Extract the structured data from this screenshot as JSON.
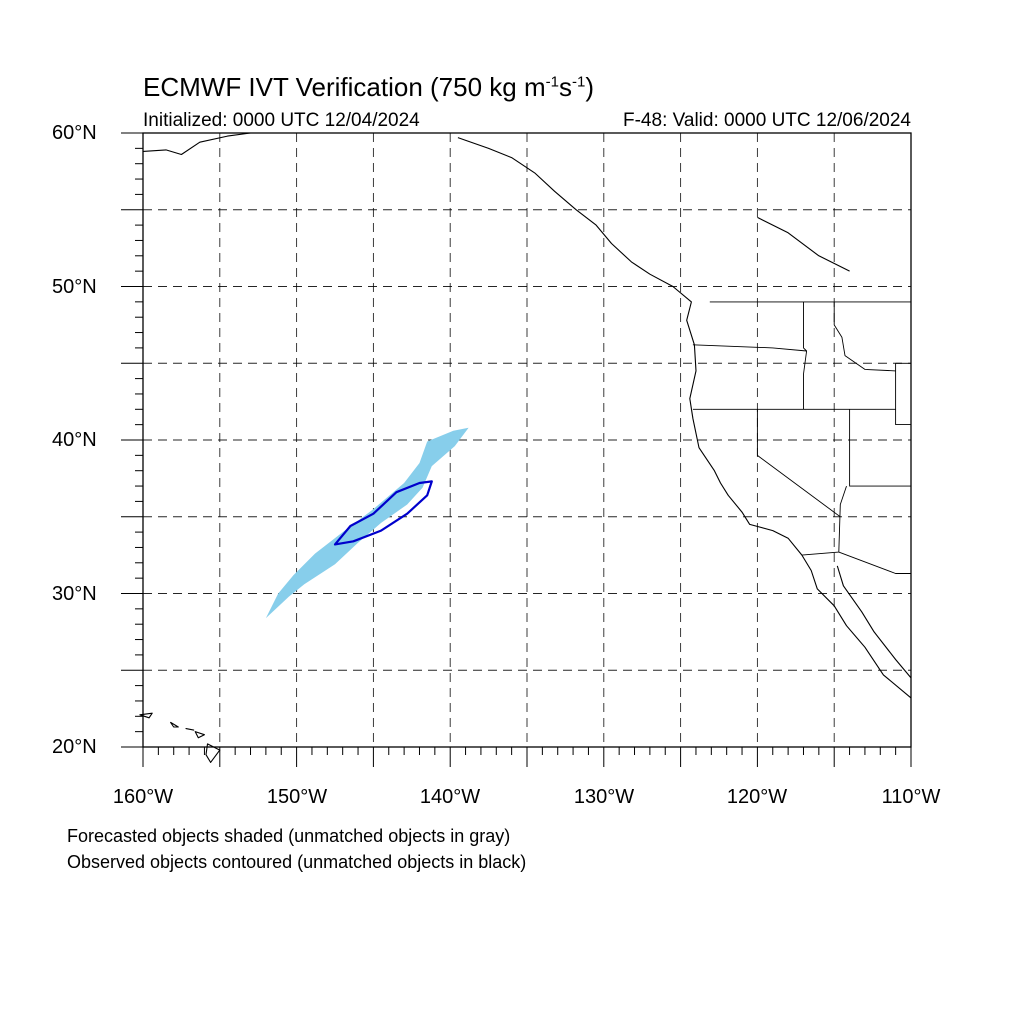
{
  "title": {
    "main": "ECMWF IVT Verification (750 kg m",
    "exp1": "-1",
    "mid": "s",
    "exp2": "-1",
    "close": ")"
  },
  "initialized": "Initialized: 0000 UTC 12/04/2024",
  "valid": "F-48: Valid: 0000 UTC 12/06/2024",
  "lat_labels": [
    "60°N",
    "50°N",
    "40°N",
    "30°N",
    "20°N"
  ],
  "lon_labels": [
    "160°W",
    "150°W",
    "140°W",
    "130°W",
    "120°W",
    "110°W"
  ],
  "notes": [
    "Forecasted objects shaded (unmatched objects in gray)",
    "Observed objects contoured (unmatched objects in black)"
  ],
  "map_extent": {
    "lon": [
      -160,
      -110
    ],
    "lat": [
      20,
      60
    ]
  },
  "colors": {
    "forecast_fill": "#87ceeb",
    "observed_contour": "#0000cc",
    "coast": "#000000",
    "grid": "#000000"
  },
  "forecast_object": {
    "matched": true,
    "outline_lonlat": [
      [
        -152.0,
        28.4
      ],
      [
        -150.5,
        29.8
      ],
      [
        -149.5,
        30.6
      ],
      [
        -147.5,
        31.9
      ],
      [
        -146.0,
        33.3
      ],
      [
        -144.5,
        34.6
      ],
      [
        -142.8,
        35.8
      ],
      [
        -141.8,
        36.9
      ],
      [
        -141.2,
        38.3
      ],
      [
        -139.7,
        39.6
      ],
      [
        -138.8,
        40.8
      ],
      [
        -139.8,
        40.6
      ],
      [
        -141.5,
        39.9
      ],
      [
        -142.0,
        38.5
      ],
      [
        -143.0,
        37.2
      ],
      [
        -145.0,
        35.5
      ],
      [
        -147.0,
        34.0
      ],
      [
        -148.8,
        32.6
      ],
      [
        -150.2,
        31.2
      ],
      [
        -151.2,
        30.0
      ]
    ]
  },
  "observed_object": {
    "matched": true,
    "contour_lonlat": [
      [
        -147.5,
        33.2
      ],
      [
        -146.5,
        34.4
      ],
      [
        -145.0,
        35.2
      ],
      [
        -143.5,
        36.6
      ],
      [
        -142.0,
        37.2
      ],
      [
        -141.2,
        37.3
      ],
      [
        -141.5,
        36.4
      ],
      [
        -142.8,
        35.2
      ],
      [
        -144.5,
        34.1
      ],
      [
        -146.3,
        33.4
      ]
    ]
  },
  "coastline_lonlat": [
    [
      -139.5,
      59.7
    ],
    [
      -137.5,
      59.0
    ],
    [
      -136.0,
      58.4
    ],
    [
      -134.5,
      57.4
    ],
    [
      -133.2,
      56.2
    ],
    [
      -131.8,
      55.0
    ],
    [
      -130.5,
      54.0
    ],
    [
      -129.5,
      52.8
    ],
    [
      -128.2,
      51.6
    ],
    [
      -127.0,
      50.8
    ],
    [
      -125.5,
      50.0
    ],
    [
      -124.3,
      49.0
    ],
    [
      -124.6,
      47.8
    ],
    [
      -124.1,
      46.2
    ],
    [
      -124.0,
      44.5
    ],
    [
      -124.4,
      42.7
    ],
    [
      -124.2,
      41.4
    ],
    [
      -123.8,
      39.5
    ],
    [
      -122.8,
      38.0
    ],
    [
      -122.4,
      37.2
    ],
    [
      -121.9,
      36.4
    ],
    [
      -121.0,
      35.3
    ],
    [
      -120.5,
      34.5
    ],
    [
      -119.0,
      34.1
    ],
    [
      -118.0,
      33.6
    ],
    [
      -117.1,
      32.5
    ],
    [
      -116.5,
      31.5
    ],
    [
      -116.1,
      30.3
    ],
    [
      -115.0,
      29.2
    ],
    [
      -114.2,
      27.9
    ],
    [
      -113.0,
      26.5
    ],
    [
      -111.8,
      24.7
    ],
    [
      -110.0,
      23.2
    ]
  ],
  "gulf_coast_lonlat": [
    [
      -114.8,
      31.8
    ],
    [
      -114.4,
      30.5
    ],
    [
      -113.2,
      28.8
    ],
    [
      -112.4,
      27.5
    ],
    [
      -111.0,
      25.7
    ],
    [
      -110.0,
      24.5
    ]
  ],
  "borders_lonlat": [
    [
      [
        -123.1,
        49.0
      ],
      [
        -110.0,
        49.0
      ]
    ],
    [
      [
        -117.0,
        49.0
      ],
      [
        -117.0,
        46.0
      ],
      [
        -116.8,
        45.8
      ]
    ],
    [
      [
        -124.2,
        46.2
      ],
      [
        -119.0,
        46.0
      ],
      [
        -116.8,
        45.8
      ],
      [
        -117.0,
        44.3
      ],
      [
        -117.0,
        42.0
      ]
    ],
    [
      [
        -124.2,
        42.0
      ],
      [
        -111.0,
        42.0
      ]
    ],
    [
      [
        -120.0,
        42.0
      ],
      [
        -120.0,
        39.0
      ],
      [
        -114.6,
        35.0
      ]
    ],
    [
      [
        -114.0,
        42.0
      ],
      [
        -114.0,
        37.0
      ],
      [
        -110.0,
        37.0
      ]
    ],
    [
      [
        -114.2,
        37.0
      ],
      [
        -114.6,
        35.8
      ],
      [
        -114.7,
        32.7
      ],
      [
        -117.1,
        32.5
      ]
    ],
    [
      [
        -114.7,
        32.7
      ],
      [
        -111.0,
        31.3
      ],
      [
        -110.0,
        31.3
      ]
    ],
    [
      [
        -111.0,
        45.0
      ],
      [
        -110.0,
        45.0
      ]
    ],
    [
      [
        -111.0,
        45.0
      ],
      [
        -111.0,
        41.0
      ],
      [
        -110.0,
        41.0
      ]
    ],
    [
      [
        -115.0,
        49.0
      ],
      [
        -115.0,
        47.5
      ],
      [
        -114.5,
        46.7
      ],
      [
        -114.3,
        45.5
      ],
      [
        -113.0,
        44.6
      ],
      [
        -111.0,
        44.5
      ]
    ]
  ],
  "canada_inland_lonlat": [
    [
      -120.0,
      54.5
    ],
    [
      -118.0,
      53.5
    ],
    [
      -116.0,
      52.0
    ],
    [
      -114.0,
      51.0
    ]
  ],
  "alaska_coast_lonlat": [
    [
      -160.0,
      58.8
    ],
    [
      -158.5,
      58.9
    ],
    [
      -157.5,
      58.6
    ],
    [
      -156.3,
      59.4
    ],
    [
      -154.5,
      59.8
    ],
    [
      -153.0,
      60.0
    ]
  ],
  "hawaii_islands_lonlat": [
    [
      [
        -160.2,
        22.1
      ],
      [
        -159.4,
        22.2
      ],
      [
        -159.6,
        21.9
      ]
    ],
    [
      [
        -158.2,
        21.6
      ],
      [
        -157.7,
        21.3
      ],
      [
        -158.0,
        21.3
      ]
    ],
    [
      [
        -157.2,
        21.2
      ],
      [
        -156.7,
        21.1
      ]
    ],
    [
      [
        -156.6,
        21.0
      ],
      [
        -156.0,
        20.8
      ],
      [
        -156.4,
        20.6
      ]
    ],
    [
      [
        -155.8,
        20.2
      ],
      [
        -155.0,
        19.8
      ],
      [
        -155.6,
        19.0
      ],
      [
        -155.9,
        19.5
      ]
    ]
  ]
}
